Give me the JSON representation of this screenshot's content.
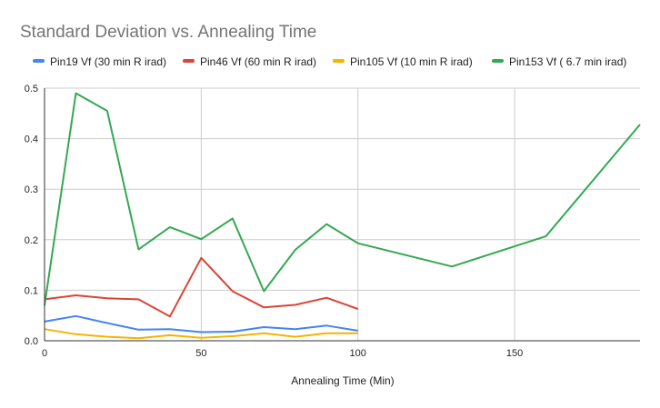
{
  "chart_data": {
    "type": "line",
    "title": "Standard Deviation vs. Annealing Time",
    "xlabel": "Annealing Time (Min)",
    "ylabel": "",
    "xlim": [
      0,
      190
    ],
    "ylim": [
      0,
      0.5
    ],
    "x_ticks": [
      0,
      50,
      100,
      150
    ],
    "y_ticks": [
      0,
      0.1,
      0.2,
      0.3,
      0.4,
      0.5
    ],
    "x_tick_labels": [
      "0",
      "50",
      "100",
      "150"
    ],
    "y_tick_labels": [
      "0.0",
      "0.1",
      "0.2",
      "0.3",
      "0.4",
      "0.5"
    ],
    "grid": true,
    "legend_position": "top",
    "series": [
      {
        "name": "Pin19 Vf (30 min R irad)",
        "color": "#4285f4",
        "x": [
          0,
          10,
          20,
          30,
          40,
          50,
          60,
          70,
          80,
          90,
          100
        ],
        "values": [
          0.038,
          0.049,
          0.035,
          0.022,
          0.023,
          0.017,
          0.018,
          0.027,
          0.023,
          0.03,
          0.02
        ]
      },
      {
        "name": "Pin46 Vf (60 min R irad)",
        "color": "#db4437",
        "x": [
          0,
          10,
          20,
          30,
          40,
          50,
          60,
          70,
          80,
          90,
          100
        ],
        "values": [
          0.082,
          0.09,
          0.084,
          0.082,
          0.048,
          0.164,
          0.098,
          0.066,
          0.071,
          0.085,
          0.063
        ]
      },
      {
        "name": "Pin105 Vf (10 min R irad)",
        "color": "#f4b400",
        "x": [
          0,
          10,
          20,
          30,
          40,
          50,
          60,
          70,
          80,
          90,
          100
        ],
        "values": [
          0.023,
          0.013,
          0.008,
          0.005,
          0.011,
          0.006,
          0.009,
          0.015,
          0.008,
          0.015,
          0.015
        ]
      },
      {
        "name": "Pin153 Vf ( 6.7 min irad)",
        "color": "#34a853",
        "x": [
          0,
          10,
          20,
          30,
          40,
          50,
          60,
          70,
          80,
          90,
          100,
          130,
          160,
          190
        ],
        "values": [
          0.07,
          0.49,
          0.455,
          0.181,
          0.225,
          0.201,
          0.242,
          0.098,
          0.18,
          0.231,
          0.193,
          0.147,
          0.207,
          0.428
        ]
      }
    ]
  }
}
